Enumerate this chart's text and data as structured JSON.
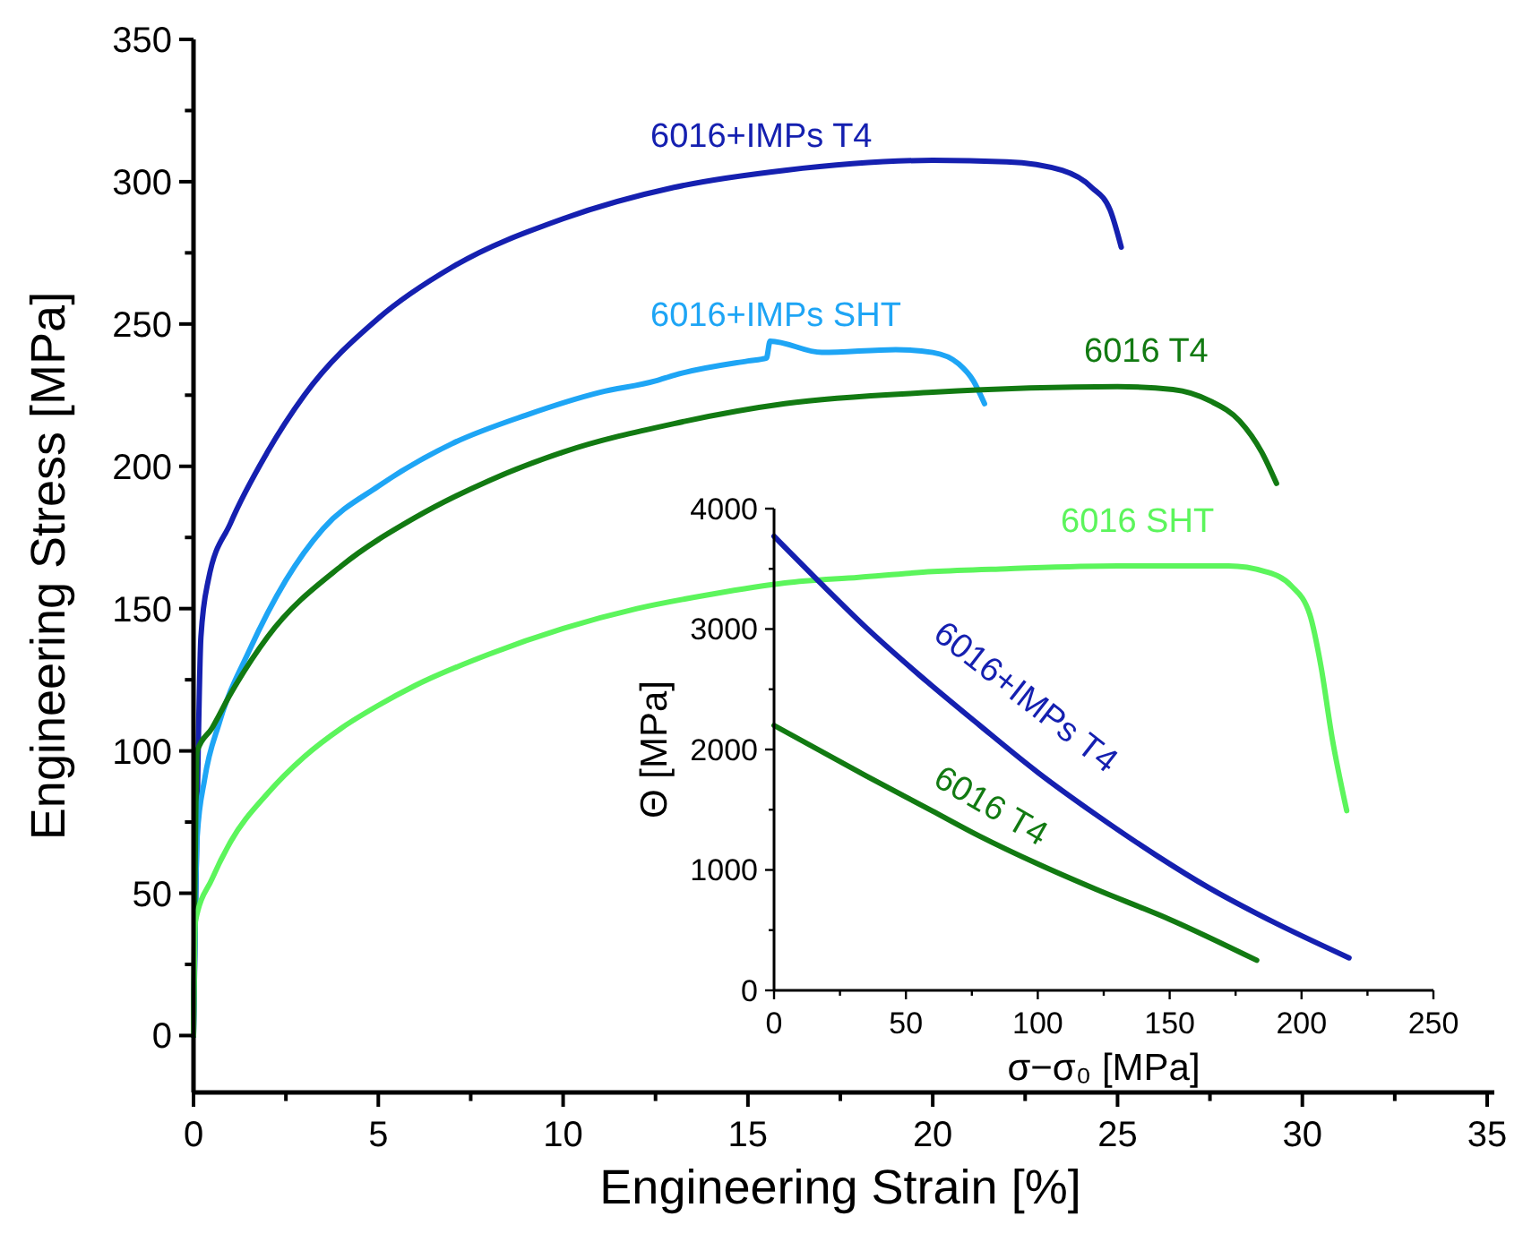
{
  "chart_data": [
    {
      "type": "line",
      "xlabel": "Engineering Strain [%]",
      "ylabel": "Engineering Stress [MPa]",
      "xlim": [
        0,
        35
      ],
      "ylim": [
        -20,
        350
      ],
      "xticks": [
        0,
        {
          "value": 2.5,
          "label": null
        },
        5,
        {
          "value": 7.5,
          "label": null
        },
        10,
        {
          "value": 12.5,
          "label": null
        },
        15,
        {
          "value": 17.5,
          "label": null
        },
        20,
        {
          "value": 22.5,
          "label": null
        },
        25,
        {
          "value": 27.5,
          "label": null
        },
        30,
        {
          "value": 32.5,
          "label": null
        },
        35
      ],
      "yticks": [
        0,
        {
          "value": 25,
          "label": null
        },
        50,
        {
          "value": 75,
          "label": null
        },
        100,
        {
          "value": 125,
          "label": null
        },
        150,
        {
          "value": 175,
          "label": null
        },
        200,
        {
          "value": 225,
          "label": null
        },
        250,
        {
          "value": 275,
          "label": null
        },
        300,
        {
          "value": 325,
          "label": null
        },
        350
      ],
      "marker": "none",
      "line_style": "solid",
      "series": [
        {
          "name": "6016+IMPs T4",
          "color": "#1520b0",
          "x": [
            0,
            0.1,
            0.2,
            0.4,
            1,
            2,
            3,
            5,
            7,
            10,
            13,
            16,
            20,
            22,
            23.5,
            24.3,
            24.8,
            25.1
          ],
          "values": [
            0,
            80,
            140,
            160,
            180,
            205,
            225,
            252,
            270,
            287,
            298,
            304,
            307.5,
            307,
            304,
            298,
            290,
            277
          ]
        },
        {
          "name": "6016+IMPs SHT",
          "color": "#1ea5f5",
          "x": [
            0,
            0.1,
            0.3,
            0.7,
            1.5,
            2.5,
            3.5,
            5,
            7,
            9,
            11,
            12.5,
            13,
            15,
            15.5,
            15.6,
            17,
            19,
            20,
            20.7,
            21.1,
            21.4
          ],
          "values": [
            0,
            70,
            90,
            110,
            135,
            160,
            178,
            193,
            208,
            218,
            226,
            230,
            232,
            237,
            238,
            244,
            240,
            241,
            240,
            236,
            230,
            222
          ]
        },
        {
          "name": "6016 T4",
          "color": "#127a12",
          "x": [
            0,
            0.1,
            0.5,
            1,
            2,
            4,
            6,
            8,
            10,
            13,
            16,
            20,
            25,
            26.5,
            27.5,
            28.3,
            28.9,
            29.3
          ],
          "values": [
            0,
            100,
            108,
            120,
            140,
            165,
            182,
            195,
            205,
            215,
            222,
            226,
            228,
            227,
            223,
            216,
            205,
            194
          ]
        },
        {
          "name": "6016 SHT",
          "color": "#5cf55c",
          "x": [
            0,
            0.05,
            0.5,
            1,
            2,
            3,
            4,
            5,
            6,
            8,
            10,
            12,
            14,
            16,
            18,
            20,
            22,
            25,
            28,
            29,
            29.7,
            30.2,
            30.5,
            30.8,
            31.2
          ],
          "values": [
            0,
            40,
            55,
            68,
            85,
            98,
            108,
            116,
            123,
            134,
            143,
            150,
            155,
            159,
            161,
            163,
            164,
            165,
            165,
            163,
            158,
            148,
            130,
            105,
            79
          ]
        }
      ]
    },
    {
      "type": "line",
      "xlabel": "σ−σ₀ [MPa]",
      "ylabel": "Θ [MPa]",
      "xlim": [
        0,
        250
      ],
      "ylim": [
        0,
        4000
      ],
      "xticks": [
        0,
        {
          "value": 25,
          "label": null
        },
        50,
        {
          "value": 75,
          "label": null
        },
        100,
        {
          "value": 125,
          "label": null
        },
        150,
        {
          "value": 175,
          "label": null
        },
        200,
        {
          "value": 225,
          "label": null
        },
        250
      ],
      "yticks": [
        0,
        {
          "value": 500,
          "label": null
        },
        1000,
        {
          "value": 1500,
          "label": null
        },
        2000,
        {
          "value": 2500,
          "label": null
        },
        3000,
        {
          "value": 3500,
          "label": null
        },
        4000
      ],
      "marker": "none",
      "line_style": "solid",
      "series": [
        {
          "name": "6016+IMPs T4",
          "color": "#1520b0",
          "x": [
            0,
            20,
            35,
            55,
            78,
            100,
            122,
            145,
            165,
            190,
            218
          ],
          "values": [
            3770,
            3330,
            3010,
            2620,
            2200,
            1810,
            1460,
            1120,
            850,
            560,
            270
          ]
        },
        {
          "name": "6016 T4",
          "color": "#127a12",
          "x": [
            0,
            35,
            60,
            78,
            100,
            122,
            150,
            183
          ],
          "values": [
            2200,
            1780,
            1490,
            1280,
            1050,
            840,
            590,
            250
          ]
        }
      ]
    }
  ]
}
